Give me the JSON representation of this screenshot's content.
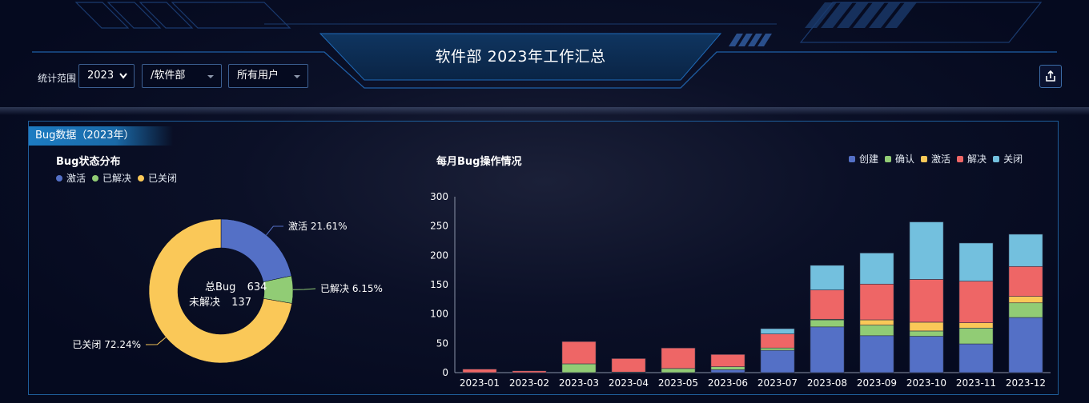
{
  "header": {
    "title": "软件部 2023年工作汇总",
    "filter_label": "统计范围",
    "year_select": "2023",
    "dept_select": "/软件部",
    "user_select": "所有用户",
    "export_icon": "export-icon"
  },
  "panel": {
    "tab_label": "Bug数据（2023年）"
  },
  "colors": {
    "blue": "#5470c6",
    "green": "#91cc75",
    "yellow": "#fac858",
    "red": "#ee6666",
    "cyan": "#73c0de"
  },
  "chart_data": [
    {
      "type": "pie",
      "title": "Bug状态分布",
      "legend": [
        "激活",
        "已解决",
        "已关闭"
      ],
      "slices": [
        {
          "name": "激活",
          "value": 21.61,
          "label": "激活  21.61%",
          "color": "#5470c6"
        },
        {
          "name": "已解决",
          "value": 6.15,
          "label": "已解决  6.15%",
          "color": "#91cc75"
        },
        {
          "name": "已关闭",
          "value": 72.24,
          "label": "已关闭  72.24%",
          "color": "#fac858"
        }
      ],
      "center_labels": [
        {
          "name": "总Bug",
          "value": "634"
        },
        {
          "name": "未解决",
          "value": "137"
        }
      ]
    },
    {
      "type": "bar",
      "stacked": true,
      "title": "每月Bug操作情况",
      "legend_position": "top-right",
      "categories": [
        "2023-01",
        "2023-02",
        "2023-03",
        "2023-04",
        "2023-05",
        "2023-06",
        "2023-07",
        "2023-08",
        "2023-09",
        "2023-10",
        "2023-11",
        "2023-12"
      ],
      "ylim": [
        0,
        300
      ],
      "yticks": [
        0,
        50,
        100,
        150,
        200,
        250,
        300
      ],
      "series": [
        {
          "name": "创建",
          "color": "#5470c6",
          "values": [
            0,
            0,
            0,
            0,
            0,
            5,
            38,
            78,
            63,
            62,
            49,
            94
          ]
        },
        {
          "name": "确认",
          "color": "#91cc75",
          "values": [
            0,
            0,
            15,
            1,
            7,
            5,
            4,
            12,
            18,
            9,
            27,
            25
          ]
        },
        {
          "name": "激活",
          "color": "#fac858",
          "values": [
            0,
            0,
            0,
            0,
            0,
            0,
            0,
            1,
            9,
            15,
            9,
            11
          ]
        },
        {
          "name": "解决",
          "color": "#ee6666",
          "values": [
            6,
            3,
            38,
            23,
            35,
            21,
            24,
            50,
            61,
            73,
            71,
            51
          ]
        },
        {
          "name": "关闭",
          "color": "#73c0de",
          "values": [
            0,
            0,
            0,
            0,
            0,
            0,
            9,
            42,
            53,
            98,
            65,
            55
          ]
        }
      ]
    }
  ]
}
